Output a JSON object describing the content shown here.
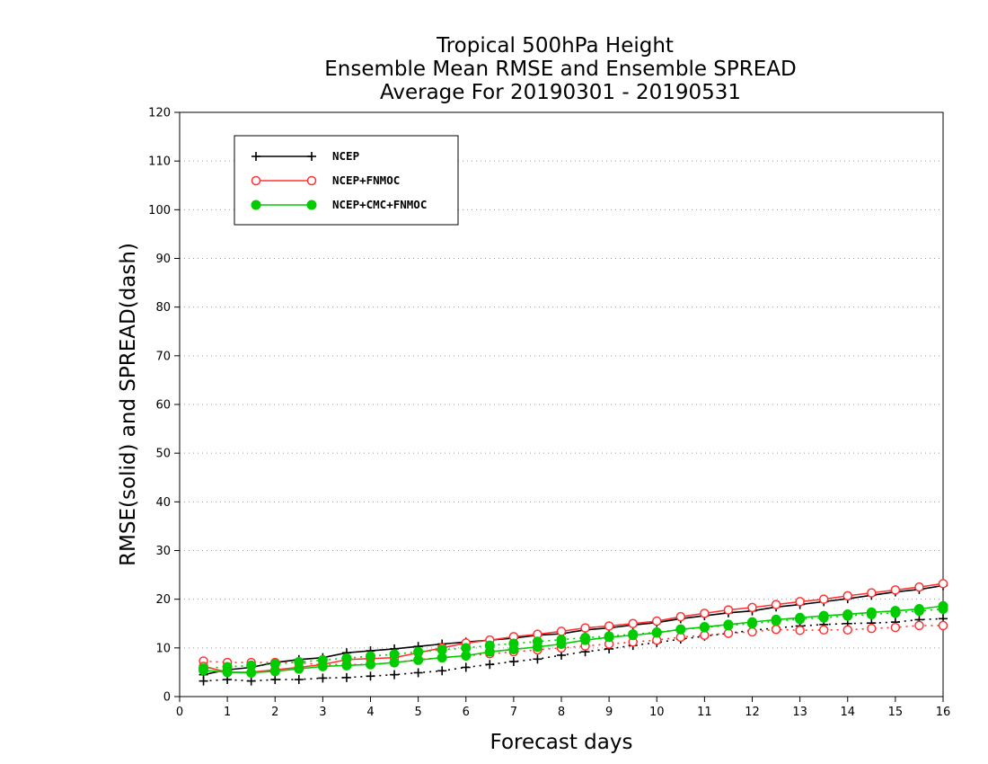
{
  "chart_data": {
    "type": "line",
    "title_lines": [
      "Tropical 500hPa Height",
      "Ensemble Mean RMSE and Ensemble SPREAD",
      "Average For 20190301 - 20190531"
    ],
    "xlabel": "Forecast days",
    "ylabel": "RMSE(solid) and SPREAD(dash)",
    "xlim": [
      0,
      16
    ],
    "ylim": [
      0,
      120
    ],
    "x_ticks": [
      "0",
      "1",
      "2",
      "3",
      "4",
      "5",
      "6",
      "7",
      "8",
      "9",
      "10",
      "11",
      "12",
      "13",
      "14",
      "15",
      "16"
    ],
    "y_ticks": [
      "0",
      "10",
      "20",
      "30",
      "40",
      "50",
      "60",
      "70",
      "80",
      "90",
      "100",
      "110",
      "120"
    ],
    "grid": "horizontal dotted",
    "legend_position": "top-left",
    "x": [
      0.5,
      1,
      1.5,
      2,
      2.5,
      3,
      3.5,
      4,
      4.5,
      5,
      5.5,
      6,
      6.5,
      7,
      7.5,
      8,
      8.5,
      9,
      9.5,
      10,
      10.5,
      11,
      11.5,
      12,
      12.5,
      13,
      13.5,
      14,
      14.5,
      15,
      15.5,
      16
    ],
    "series": [
      {
        "name": "NCEP",
        "color": "#000000",
        "marker": "plus",
        "rmse": [
          4.5,
          5.5,
          6.0,
          7.0,
          7.6,
          8.0,
          9.0,
          9.4,
          9.8,
          10.3,
          10.8,
          11.2,
          11.6,
          12.0,
          12.6,
          12.9,
          13.7,
          14.1,
          14.7,
          15.2,
          16.0,
          16.6,
          17.2,
          17.6,
          18.4,
          18.9,
          19.5,
          20.1,
          20.8,
          21.5,
          22.0,
          22.8
        ],
        "spread": [
          3.2,
          3.5,
          3.2,
          3.5,
          3.5,
          3.8,
          3.9,
          4.2,
          4.5,
          4.9,
          5.3,
          6.0,
          6.6,
          7.2,
          7.7,
          8.5,
          9.2,
          9.8,
          10.5,
          11.1,
          11.8,
          12.4,
          13.0,
          13.6,
          14.1,
          14.5,
          14.8,
          15.0,
          15.1,
          15.3,
          15.8,
          16.0
        ]
      },
      {
        "name": "NCEP+FNMOC",
        "color": "#ff3333",
        "marker": "circle-open",
        "rmse": [
          6.2,
          5.0,
          5.0,
          5.5,
          6.0,
          6.6,
          7.6,
          7.8,
          8.0,
          9.0,
          10.0,
          11.0,
          11.6,
          12.3,
          12.8,
          13.4,
          14.1,
          14.5,
          15.0,
          15.5,
          16.4,
          17.1,
          17.8,
          18.3,
          18.9,
          19.5,
          20.0,
          20.7,
          21.3,
          21.9,
          22.5,
          23.2
        ],
        "spread": [
          7.3,
          7.0,
          7.0,
          7.0,
          7.0,
          6.5,
          6.6,
          6.6,
          7.0,
          7.6,
          8.0,
          8.4,
          8.8,
          9.2,
          9.6,
          10.0,
          10.4,
          10.8,
          11.2,
          11.6,
          12.2,
          12.6,
          13.0,
          13.3,
          13.8,
          13.6,
          13.7,
          13.7,
          14.0,
          14.2,
          14.6,
          14.6
        ]
      },
      {
        "name": "NCEP+CMC+FNMOC",
        "color": "#00cc00",
        "marker": "circle-filled",
        "rmse": [
          5.4,
          5.0,
          4.9,
          5.2,
          5.7,
          6.2,
          6.4,
          6.6,
          7.0,
          7.5,
          8.0,
          8.4,
          9.2,
          9.7,
          10.2,
          10.8,
          11.6,
          12.2,
          12.6,
          13.1,
          13.8,
          14.3,
          14.8,
          15.3,
          15.8,
          16.2,
          16.6,
          16.9,
          17.3,
          17.6,
          18.0,
          18.6
        ],
        "spread": [
          5.8,
          6.1,
          6.4,
          6.7,
          7.1,
          7.5,
          7.9,
          8.3,
          8.7,
          9.2,
          9.6,
          10.0,
          10.5,
          10.9,
          11.3,
          11.7,
          12.1,
          12.4,
          12.8,
          13.2,
          13.8,
          14.2,
          14.6,
          15.0,
          15.5,
          15.9,
          16.2,
          16.6,
          16.9,
          17.2,
          17.6,
          18.0
        ]
      }
    ]
  }
}
